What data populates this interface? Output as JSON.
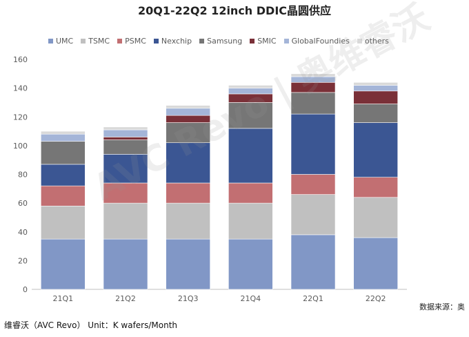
{
  "chart_data": {
    "type": "bar",
    "stacked": true,
    "title": "20Q1-22Q2 12inch DDIC晶圆供应",
    "categories": [
      "21Q1",
      "21Q2",
      "21Q3",
      "21Q4",
      "22Q1",
      "22Q2"
    ],
    "ylim": [
      0,
      160
    ],
    "yticks": [
      "0",
      "20",
      "40",
      "60",
      "80",
      "100",
      "120",
      "140",
      "160"
    ],
    "ytick_values": [
      0,
      20,
      40,
      60,
      80,
      100,
      120,
      140,
      160
    ],
    "grid": false,
    "legend_position": "top",
    "series": [
      {
        "name": "UMC",
        "color": "#8197c6",
        "values": [
          35,
          35,
          35,
          35,
          38,
          36
        ]
      },
      {
        "name": "TSMC",
        "color": "#c0c0c0",
        "values": [
          23,
          25,
          25,
          25,
          28,
          28
        ]
      },
      {
        "name": "PSMC",
        "color": "#c26f72",
        "values": [
          14,
          14,
          14,
          14,
          14,
          14
        ]
      },
      {
        "name": "Nexchip",
        "color": "#3b5693",
        "values": [
          15,
          20,
          28,
          38,
          42,
          38
        ]
      },
      {
        "name": "Samsung",
        "color": "#767676",
        "values": [
          16,
          10,
          14,
          18,
          15,
          13
        ]
      },
      {
        "name": "SMIC",
        "color": "#7a3038",
        "values": [
          0,
          2,
          5,
          6,
          7,
          9
        ]
      },
      {
        "name": "GlobalFoundies",
        "color": "#a4b5d8",
        "values": [
          5,
          5,
          5,
          4,
          4,
          4
        ]
      },
      {
        "name": "others",
        "color": "#d9d9d9",
        "values": [
          2,
          2,
          2,
          2,
          2,
          2
        ]
      }
    ]
  },
  "watermark_text": "AVC Revo | 奥维睿沃",
  "source_note": "数据来源：奥",
  "footer_note": "维睿沃（AVC Revo）  Unit：K wafers/Month"
}
